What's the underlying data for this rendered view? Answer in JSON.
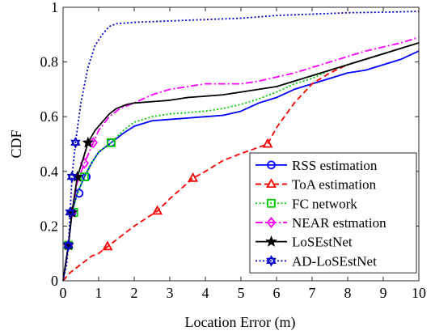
{
  "chart_data": {
    "type": "line",
    "title": "",
    "xlabel": "Location Error (m)",
    "ylabel": "CDF",
    "xlim": [
      0,
      10
    ],
    "ylim": [
      0,
      1
    ],
    "xticks": [
      "0",
      "1",
      "2",
      "3",
      "4",
      "5",
      "6",
      "7",
      "8",
      "9",
      "10"
    ],
    "yticks": [
      "0",
      "0.2",
      "0.4",
      "0.6",
      "0.8",
      "1"
    ],
    "grid": false,
    "legend_position": "bottom-right",
    "series": [
      {
        "name": "RSS estimation",
        "color": "#0000ff",
        "dash": "solid",
        "marker": "circle",
        "x": [
          0,
          0.15,
          0.25,
          0.4,
          0.6,
          0.8,
          1.0,
          1.35,
          1.7,
          2.0,
          2.5,
          3.0,
          3.5,
          4.0,
          4.5,
          5.0,
          5.5,
          6.0,
          6.5,
          7.0,
          7.5,
          8.0,
          8.5,
          9.0,
          9.5,
          10.0
        ],
        "y": [
          0,
          0.13,
          0.25,
          0.32,
          0.38,
          0.43,
          0.47,
          0.505,
          0.54,
          0.565,
          0.585,
          0.59,
          0.595,
          0.6,
          0.605,
          0.62,
          0.65,
          0.67,
          0.7,
          0.72,
          0.74,
          0.76,
          0.77,
          0.79,
          0.81,
          0.84
        ],
        "marker_x": [
          0.15,
          0.25,
          0.45,
          0.65,
          1.35
        ],
        "marker_y": [
          0.13,
          0.25,
          0.32,
          0.38,
          0.505
        ]
      },
      {
        "name": "ToA estimation",
        "color": "#ff0000",
        "dash": "dashed",
        "marker": "triangle",
        "x": [
          0,
          0.2,
          0.5,
          0.8,
          1.0,
          1.25,
          1.5,
          2.0,
          2.65,
          3.0,
          3.65,
          4.0,
          4.5,
          5.0,
          5.75,
          6.0,
          6.5,
          7.0,
          7.5,
          8.0,
          8.5,
          9.0,
          9.5,
          10.0
        ],
        "y": [
          0,
          0.03,
          0.06,
          0.09,
          0.1,
          0.125,
          0.15,
          0.2,
          0.255,
          0.3,
          0.375,
          0.4,
          0.44,
          0.465,
          0.5,
          0.56,
          0.65,
          0.72,
          0.76,
          0.79,
          0.81,
          0.83,
          0.85,
          0.87
        ],
        "marker_x": [
          1.25,
          2.65,
          3.65,
          5.75
        ],
        "marker_y": [
          0.125,
          0.255,
          0.375,
          0.5
        ]
      },
      {
        "name": "FC network",
        "color": "#00cc00",
        "dash": "dotted",
        "marker": "square",
        "x": [
          0,
          0.15,
          0.25,
          0.4,
          0.6,
          0.8,
          1.0,
          1.35,
          1.7,
          2.0,
          2.5,
          3.0,
          3.5,
          4.0,
          4.5,
          5.0,
          5.5,
          6.0,
          6.5,
          7.0,
          7.5,
          8.0,
          8.5,
          9.0,
          9.5,
          10.0
        ],
        "y": [
          0,
          0.13,
          0.25,
          0.32,
          0.38,
          0.43,
          0.47,
          0.505,
          0.55,
          0.58,
          0.6,
          0.61,
          0.615,
          0.62,
          0.63,
          0.645,
          0.665,
          0.69,
          0.72,
          0.74,
          0.77,
          0.79,
          0.81,
          0.83,
          0.85,
          0.87
        ],
        "marker_x": [
          0.15,
          0.3,
          0.6,
          1.35
        ],
        "marker_y": [
          0.13,
          0.25,
          0.38,
          0.505
        ]
      },
      {
        "name": "NEAR estmation",
        "color": "#ff00ff",
        "dash": "dashdot",
        "marker": "diamond",
        "x": [
          0,
          0.15,
          0.25,
          0.4,
          0.6,
          0.85,
          1.0,
          1.3,
          1.6,
          2.0,
          2.5,
          3.0,
          3.5,
          4.0,
          4.5,
          5.0,
          5.5,
          6.0,
          6.5,
          7.0,
          7.5,
          8.0,
          8.5,
          9.0,
          9.5,
          10.0
        ],
        "y": [
          0,
          0.13,
          0.25,
          0.36,
          0.43,
          0.505,
          0.55,
          0.6,
          0.63,
          0.65,
          0.68,
          0.7,
          0.71,
          0.72,
          0.72,
          0.72,
          0.73,
          0.745,
          0.76,
          0.78,
          0.8,
          0.82,
          0.84,
          0.855,
          0.87,
          0.89
        ],
        "marker_x": [
          0.15,
          0.25,
          0.6,
          0.85
        ],
        "marker_y": [
          0.13,
          0.25,
          0.43,
          0.505
        ]
      },
      {
        "name": "LoSEstNet",
        "color": "#000000",
        "dash": "solid",
        "marker": "star",
        "x": [
          0,
          0.15,
          0.25,
          0.4,
          0.55,
          0.7,
          0.9,
          1.1,
          1.3,
          1.5,
          1.8,
          2.0,
          2.5,
          3.0,
          3.5,
          4.0,
          4.5,
          5.0,
          5.5,
          6.0,
          6.5,
          7.0,
          7.5,
          8.0,
          8.5,
          9.0,
          9.5,
          10.0
        ],
        "y": [
          0,
          0.13,
          0.25,
          0.38,
          0.44,
          0.505,
          0.55,
          0.58,
          0.61,
          0.63,
          0.645,
          0.65,
          0.655,
          0.66,
          0.67,
          0.675,
          0.68,
          0.69,
          0.7,
          0.71,
          0.73,
          0.75,
          0.77,
          0.79,
          0.81,
          0.83,
          0.85,
          0.87
        ],
        "marker_x": [
          0.15,
          0.25,
          0.4,
          0.7
        ],
        "marker_y": [
          0.13,
          0.25,
          0.38,
          0.505
        ]
      },
      {
        "name": "AD-LoSEstNet",
        "color": "#0000cc",
        "dash": "dotted",
        "marker": "hexagram",
        "x": [
          0,
          0.1,
          0.15,
          0.2,
          0.25,
          0.35,
          0.5,
          0.7,
          0.9,
          1.1,
          1.3,
          1.5,
          2.0,
          3.0,
          4.0,
          5.0,
          6.0,
          7.0,
          8.0,
          9.0,
          10.0
        ],
        "y": [
          0,
          0.06,
          0.13,
          0.25,
          0.38,
          0.505,
          0.65,
          0.78,
          0.86,
          0.9,
          0.93,
          0.94,
          0.945,
          0.95,
          0.955,
          0.96,
          0.97,
          0.975,
          0.98,
          0.982,
          0.985
        ],
        "marker_x": [
          0.15,
          0.2,
          0.25,
          0.35
        ],
        "marker_y": [
          0.13,
          0.25,
          0.38,
          0.505
        ]
      }
    ]
  }
}
